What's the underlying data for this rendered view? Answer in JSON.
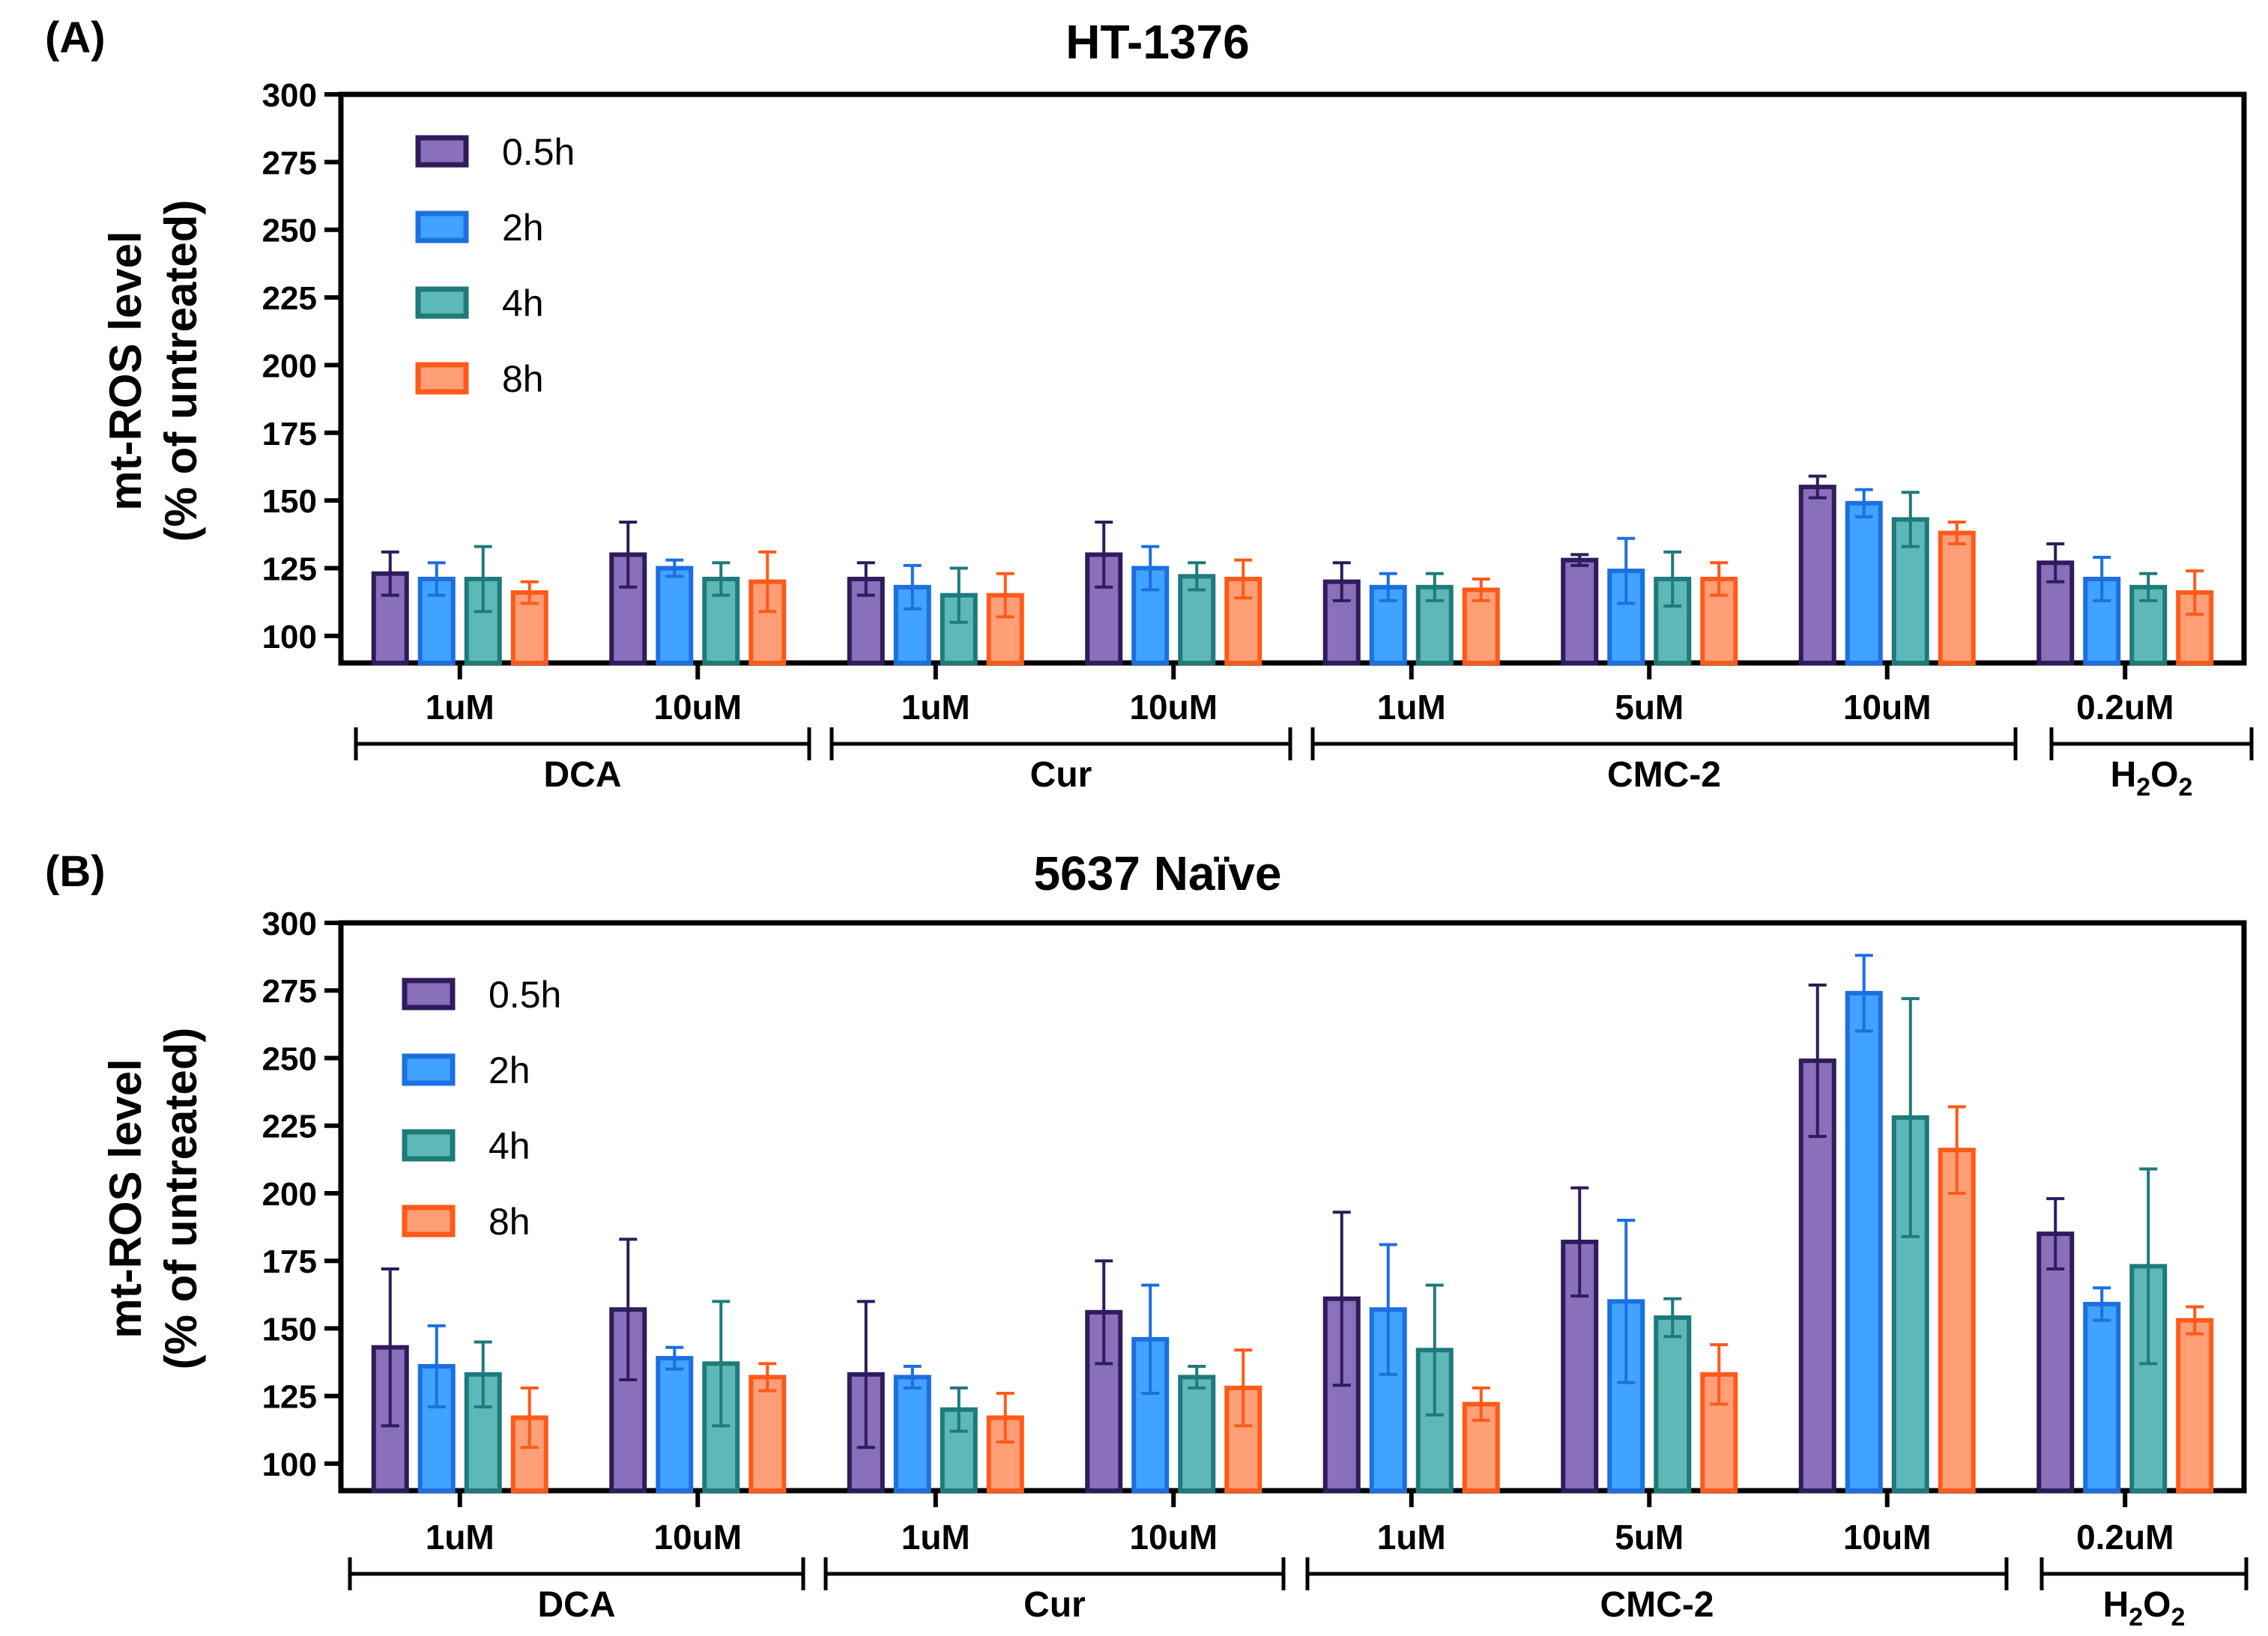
{
  "chart_data": [
    {
      "type": "bar",
      "panel_label": "(A)",
      "title": "HT-1376",
      "ylabel_line1": "mt-ROS level",
      "ylabel_line2": "(% of untreated)",
      "ylim": [
        90,
        300
      ],
      "yticks": [
        100,
        125,
        150,
        175,
        200,
        225,
        250,
        275,
        300
      ],
      "grid": false,
      "legend_position": "top-left",
      "categories": [
        "1uM",
        "10uM",
        "1uM",
        "10uM",
        "1uM",
        "5uM",
        "10uM",
        "0.2uM"
      ],
      "groups": [
        {
          "label": "DCA",
          "categories": [
            "1uM",
            "10uM"
          ]
        },
        {
          "label": "Cur",
          "categories": [
            "1uM",
            "10uM"
          ]
        },
        {
          "label": "CMC-2",
          "categories": [
            "1uM",
            "5uM",
            "10uM"
          ]
        },
        {
          "label_main": "H",
          "label_sub1": "2",
          "label_mid": "O",
          "label_sub2": "2",
          "categories": [
            "0.2uM"
          ]
        }
      ],
      "series": [
        {
          "name": "0.5h",
          "color": "#2e1c5c",
          "fill": "#8a6fbb",
          "values": [
            123,
            130,
            121,
            130,
            120,
            128,
            155,
            127
          ],
          "errors": [
            8,
            12,
            6,
            12,
            7,
            2,
            4,
            7
          ]
        },
        {
          "name": "2h",
          "color": "#1d6fe0",
          "fill": "#3fa3ff",
          "values": [
            121,
            125,
            118,
            125,
            118,
            124,
            149,
            121
          ],
          "errors": [
            6,
            3,
            8,
            8,
            5,
            12,
            5,
            8
          ]
        },
        {
          "name": "4h",
          "color": "#1f7a7a",
          "fill": "#5fb8b8",
          "values": [
            121,
            121,
            115,
            122,
            118,
            121,
            143,
            118
          ],
          "errors": [
            12,
            6,
            10,
            5,
            5,
            10,
            10,
            5
          ]
        },
        {
          "name": "8h",
          "color": "#ff5a1a",
          "fill": "#ff9f78",
          "values": [
            116,
            120,
            115,
            121,
            117,
            121,
            138,
            116
          ],
          "errors": [
            4,
            11,
            8,
            7,
            4,
            6,
            4,
            8
          ]
        }
      ]
    },
    {
      "type": "bar",
      "panel_label": "(B)",
      "title": "5637 Naïve",
      "ylabel_line1": "mt-ROS level",
      "ylabel_line2": "(% of untreated)",
      "ylim": [
        90,
        300
      ],
      "yticks": [
        100,
        125,
        150,
        175,
        200,
        225,
        250,
        275,
        300
      ],
      "grid": false,
      "legend_position": "top-left",
      "categories": [
        "1uM",
        "10uM",
        "1uM",
        "10uM",
        "1uM",
        "5uM",
        "10uM",
        "0.2uM"
      ],
      "groups": [
        {
          "label": "DCA",
          "categories": [
            "1uM",
            "10uM"
          ]
        },
        {
          "label": "Cur",
          "categories": [
            "1uM",
            "10uM"
          ]
        },
        {
          "label": "CMC-2",
          "categories": [
            "1uM",
            "5uM",
            "10uM"
          ]
        },
        {
          "label_main": "H",
          "label_sub1": "2",
          "label_mid": "O",
          "label_sub2": "2",
          "categories": [
            "0.2uM"
          ]
        }
      ],
      "series": [
        {
          "name": "0.5h",
          "color": "#2e1c5c",
          "fill": "#8a6fbb",
          "values": [
            143,
            157,
            133,
            156,
            161,
            182,
            249,
            185
          ],
          "errors": [
            29,
            26,
            27,
            19,
            32,
            20,
            28,
            13
          ]
        },
        {
          "name": "2h",
          "color": "#1d6fe0",
          "fill": "#3fa3ff",
          "values": [
            136,
            139,
            132,
            146,
            157,
            160,
            274,
            159
          ],
          "errors": [
            15,
            4,
            4,
            20,
            24,
            30,
            14,
            6
          ]
        },
        {
          "name": "4h",
          "color": "#1f7a7a",
          "fill": "#5fb8b8",
          "values": [
            133,
            137,
            120,
            132,
            142,
            154,
            228,
            173
          ],
          "errors": [
            12,
            23,
            8,
            4,
            24,
            7,
            44,
            36
          ]
        },
        {
          "name": "8h",
          "color": "#ff5a1a",
          "fill": "#ff9f78",
          "values": [
            117,
            132,
            117,
            128,
            122,
            133,
            216,
            153
          ],
          "errors": [
            11,
            5,
            9,
            14,
            6,
            11,
            16,
            5
          ]
        }
      ]
    }
  ]
}
